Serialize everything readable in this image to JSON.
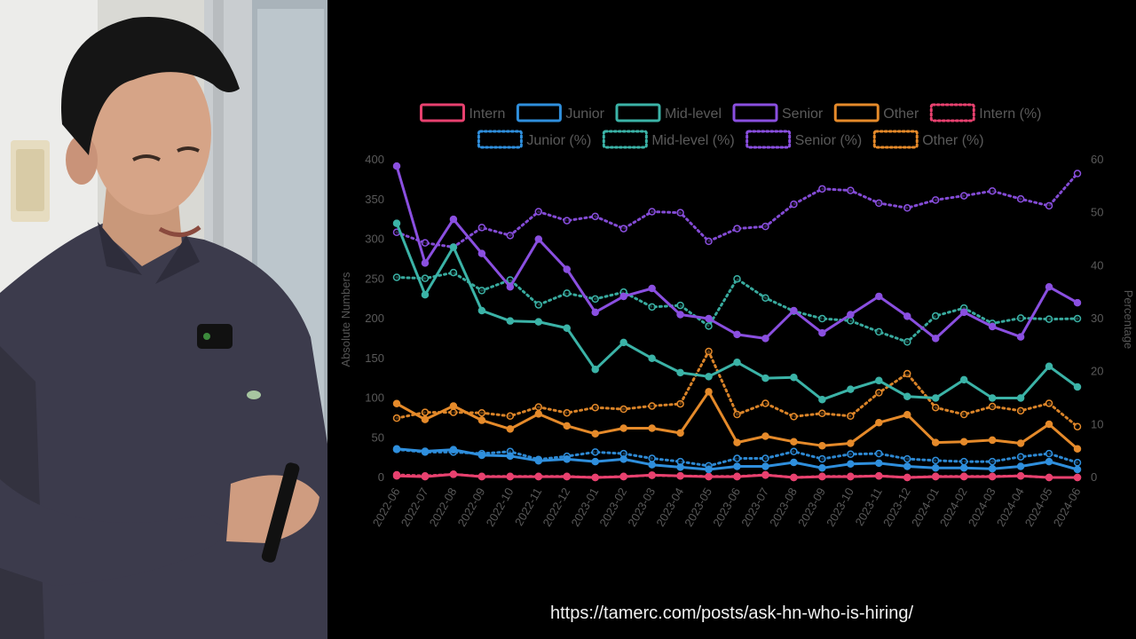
{
  "source_url": "https://tamerc.com/posts/ask-hn-who-is-hiring/",
  "chart_data": {
    "type": "line",
    "categories": [
      "2022-06",
      "2022-07",
      "2022-08",
      "2022-09",
      "2022-10",
      "2022-11",
      "2022-12",
      "2023-01",
      "2023-02",
      "2023-03",
      "2023-04",
      "2023-05",
      "2023-06",
      "2023-07",
      "2023-08",
      "2023-09",
      "2023-10",
      "2023-11",
      "2023-12",
      "2024-01",
      "2024-02",
      "2024-03",
      "2024-04",
      "2024-05",
      "2024-06"
    ],
    "ylabel": "Absolute Numbers",
    "y2label": "Percentage",
    "ylim": [
      0,
      400
    ],
    "y2lim": [
      0,
      60
    ],
    "yticks": [
      0,
      50,
      100,
      150,
      200,
      250,
      300,
      350,
      400
    ],
    "y2ticks": [
      0,
      10,
      20,
      30,
      40,
      50,
      60
    ],
    "grid": false,
    "legend_position": "top",
    "series": [
      {
        "name": "Intern",
        "axis": "left",
        "style": "solid",
        "color": "#e8416f",
        "values": [
          2,
          1,
          4,
          1,
          1,
          1,
          1,
          0,
          1,
          3,
          2,
          1,
          1,
          3,
          0,
          1,
          1,
          2,
          0,
          1,
          1,
          1,
          2,
          0,
          0
        ]
      },
      {
        "name": "Junior",
        "axis": "left",
        "style": "solid",
        "color": "#2f8fdd",
        "values": [
          36,
          33,
          35,
          28,
          27,
          21,
          23,
          20,
          23,
          16,
          13,
          10,
          14,
          14,
          19,
          12,
          17,
          18,
          14,
          12,
          12,
          11,
          14,
          20,
          10
        ]
      },
      {
        "name": "Mid-level",
        "axis": "left",
        "style": "solid",
        "color": "#3bb3a7",
        "values": [
          320,
          230,
          290,
          210,
          197,
          196,
          188,
          136,
          170,
          150,
          132,
          127,
          145,
          125,
          126,
          98,
          111,
          122,
          102,
          100,
          123,
          100,
          100,
          140,
          114
        ]
      },
      {
        "name": "Senior",
        "axis": "left",
        "style": "solid",
        "color": "#8a4fe0",
        "values": [
          392,
          270,
          325,
          282,
          240,
          300,
          262,
          208,
          228,
          238,
          205,
          200,
          180,
          175,
          210,
          182,
          205,
          228,
          203,
          175,
          208,
          190,
          177,
          240,
          220
        ]
      },
      {
        "name": "Other",
        "axis": "left",
        "style": "solid",
        "color": "#e58a2a",
        "values": [
          93,
          73,
          90,
          72,
          61,
          80,
          65,
          55,
          62,
          62,
          56,
          108,
          44,
          52,
          45,
          40,
          43,
          69,
          79,
          44,
          45,
          47,
          43,
          67,
          36
        ]
      },
      {
        "name": "Intern (%)",
        "axis": "right",
        "style": "dotted",
        "color": "#e8416f",
        "values": [
          0.5,
          0.3,
          0.6,
          0.2,
          0.2,
          0.2,
          0.2,
          0,
          0.2,
          0.4,
          0.3,
          0.2,
          0.2,
          0.5,
          0,
          0.2,
          0.2,
          0.3,
          0,
          0.2,
          0.2,
          0.2,
          0.3,
          0,
          0
        ]
      },
      {
        "name": "Junior (%)",
        "axis": "right",
        "style": "dotted",
        "color": "#2f8fdd",
        "values": [
          5.3,
          4.8,
          4.8,
          4.5,
          4.9,
          3.4,
          4.0,
          4.8,
          4.5,
          3.6,
          3.0,
          2.2,
          3.6,
          3.6,
          4.9,
          3.5,
          4.4,
          4.5,
          3.5,
          3.2,
          3.0,
          3.0,
          3.9,
          4.5,
          2.8
        ]
      },
      {
        "name": "Mid-level (%)",
        "axis": "right",
        "style": "dotted",
        "color": "#3bb3a7",
        "values": [
          37.8,
          37.6,
          38.7,
          35.3,
          37.3,
          32.6,
          34.8,
          33.7,
          35.0,
          32.2,
          32.5,
          28.6,
          37.5,
          33.9,
          31.4,
          30.0,
          29.6,
          27.5,
          25.6,
          30.5,
          32.0,
          29.1,
          30.1,
          29.9,
          30.0
        ]
      },
      {
        "name": "Senior (%)",
        "axis": "right",
        "style": "dotted",
        "color": "#8a4fe0",
        "values": [
          46.3,
          44.3,
          43.5,
          47.2,
          45.7,
          50.2,
          48.5,
          49.3,
          47.0,
          50.2,
          50.0,
          44.6,
          47.0,
          47.4,
          51.6,
          54.5,
          54.2,
          51.8,
          50.9,
          52.4,
          53.2,
          54.1,
          52.6,
          51.3,
          57.4
        ]
      },
      {
        "name": "Other (%)",
        "axis": "right",
        "style": "dotted",
        "color": "#e58a2a",
        "values": [
          11.2,
          12.3,
          12.3,
          12.2,
          11.6,
          13.3,
          12.2,
          13.2,
          12.9,
          13.5,
          13.9,
          23.8,
          11.9,
          14.0,
          11.5,
          12.1,
          11.6,
          16.0,
          19.6,
          13.2,
          11.9,
          13.4,
          12.6,
          14.0,
          9.6
        ]
      }
    ]
  }
}
